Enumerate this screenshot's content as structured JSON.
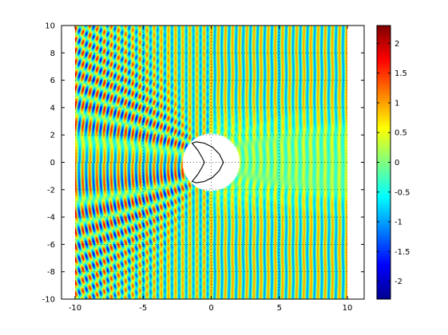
{
  "chart_data": {
    "type": "heatmap",
    "title": "",
    "xlabel": "",
    "ylabel": "",
    "xlim": [
      -10,
      10
    ],
    "ylim": [
      -10,
      10
    ],
    "data_extent": {
      "x": [
        -9.9,
        10
      ],
      "y": [
        -10,
        10
      ]
    },
    "x_ticks": [
      -10,
      -5,
      0,
      5,
      10
    ],
    "x_tick_labels": [
      "-10",
      "-5",
      "0",
      "5",
      "10"
    ],
    "y_ticks": [
      -10,
      -8,
      -6,
      -4,
      -2,
      0,
      2,
      4,
      6,
      8,
      10
    ],
    "y_tick_labels": [
      "-10",
      "-8",
      "-6",
      "-4",
      "-2",
      "0",
      "2",
      "4",
      "6",
      "8",
      "10"
    ],
    "grid": true,
    "field": {
      "description": "scattered plane wave field (real part), incident along +x",
      "wavenumber": 12,
      "incident_direction": [
        1,
        0
      ],
      "scatterer_center": [
        0,
        0
      ],
      "hole_radius": 2.1,
      "shadow_amplitude": 0.12
    },
    "obstacle_curve": {
      "x": [
        0.9,
        0.6,
        0.1,
        -0.5,
        -1.1,
        -1.4,
        -1.0,
        -0.7,
        -0.5,
        -0.7,
        -1.0,
        -1.4,
        -1.1,
        -0.5,
        0.1,
        0.6,
        0.9
      ],
      "y": [
        0.0,
        0.6,
        1.1,
        1.4,
        1.5,
        1.4,
        0.9,
        0.4,
        0.0,
        -0.4,
        -0.9,
        -1.4,
        -1.5,
        -1.4,
        -1.1,
        -0.6,
        0.0
      ]
    },
    "colorbar": {
      "colormap": "jet",
      "range": [
        -2.3,
        2.3
      ],
      "ticks": [
        -2,
        -1.5,
        -1,
        -0.5,
        0,
        0.5,
        1,
        1.5,
        2
      ],
      "tick_labels": [
        "-2",
        "-1.5",
        "-1",
        "-0.5",
        "0",
        "0.5",
        "1",
        "1.5",
        "2"
      ]
    }
  }
}
